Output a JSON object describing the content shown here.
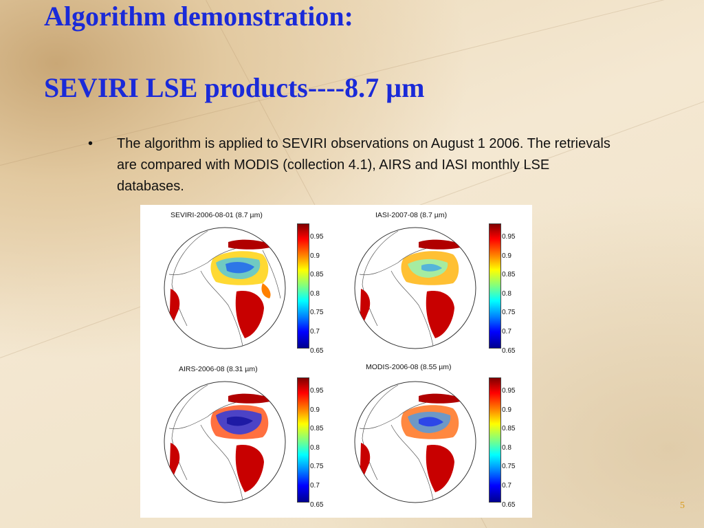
{
  "slide": {
    "title_line1": "Algorithm demonstration:",
    "title_line2": "SEVIRI LSE products----8.7 µm",
    "bullet_symbol": "•",
    "bullet_text": "The algorithm is applied to SEVIRI observations on August 1 2006. The retrievals are compared with MODIS (collection 4.1), AIRS and IASI monthly LSE databases.",
    "page_number": "5"
  },
  "figure": {
    "panels": [
      {
        "title": "SEVIRI-2006-08-01 (8.7 µm)"
      },
      {
        "title": "IASI-2007-08 (8.7 µm)"
      },
      {
        "title": "AIRS-2006-08 (8.31 µm)"
      },
      {
        "title": "MODIS-2006-08 (8.55 µm)"
      }
    ],
    "colorbar_ticks": [
      "0.95",
      "0.9",
      "0.85",
      "0.8",
      "0.75",
      "0.7",
      "0.65"
    ],
    "colorbar_colors": [
      "#00008f",
      "#0000ff",
      "#0080ff",
      "#00ffff",
      "#80ff80",
      "#ffff00",
      "#ff8000",
      "#ff0000",
      "#800000"
    ]
  }
}
